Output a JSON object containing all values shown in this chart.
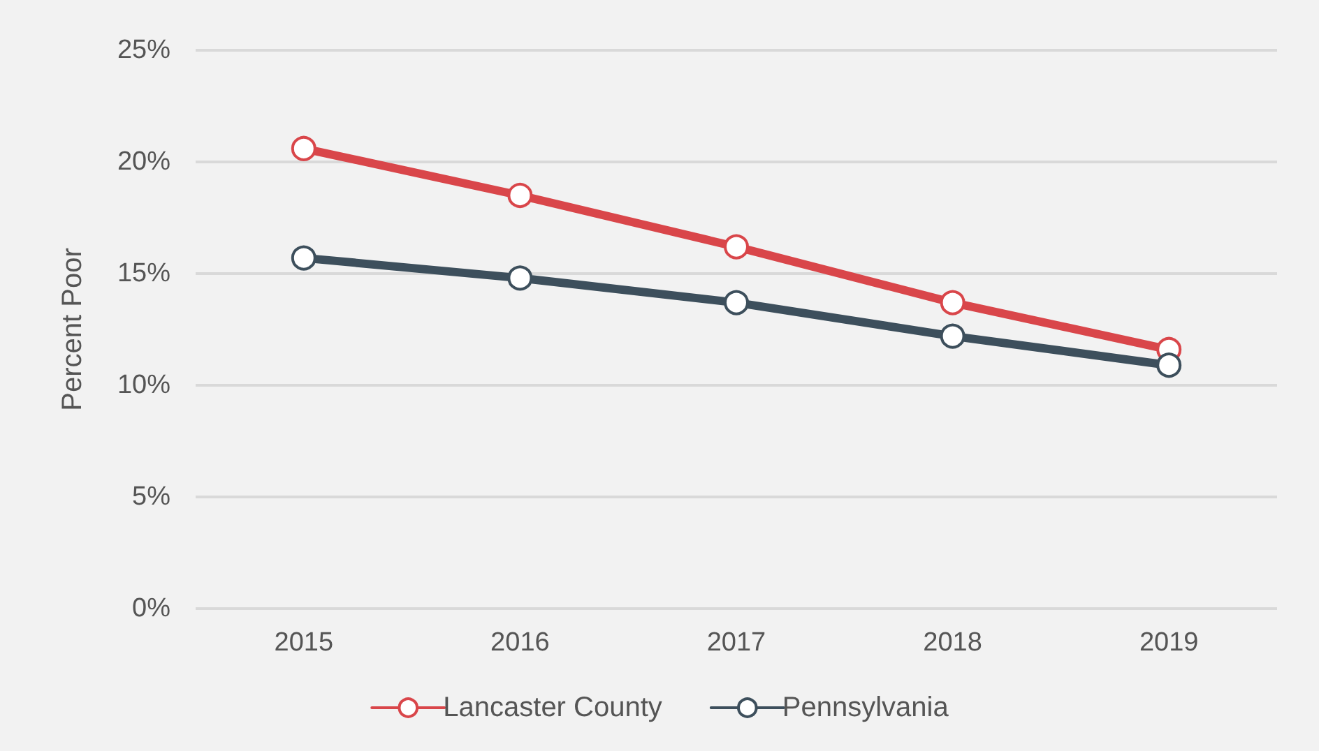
{
  "chart_data": {
    "type": "line",
    "ylabel": "Percent Poor",
    "categories": [
      "2015",
      "2016",
      "2017",
      "2018",
      "2019"
    ],
    "series": [
      {
        "name": "Lancaster County",
        "color": "#d9464a",
        "values": [
          20.6,
          18.5,
          16.2,
          13.7,
          11.6
        ]
      },
      {
        "name": "Pennsylvania",
        "color": "#3d4f5c",
        "values": [
          15.7,
          14.8,
          13.7,
          12.2,
          10.9
        ]
      }
    ],
    "ylim": [
      0,
      25
    ],
    "yticks": [
      {
        "value": 0,
        "label": "0%"
      },
      {
        "value": 5,
        "label": "5%"
      },
      {
        "value": 10,
        "label": "10%"
      },
      {
        "value": 15,
        "label": "15%"
      },
      {
        "value": 20,
        "label": "20%"
      },
      {
        "value": 25,
        "label": "25%"
      }
    ],
    "grid": "y",
    "legend": "bottom",
    "marker": "circle",
    "line_style": "solid"
  }
}
